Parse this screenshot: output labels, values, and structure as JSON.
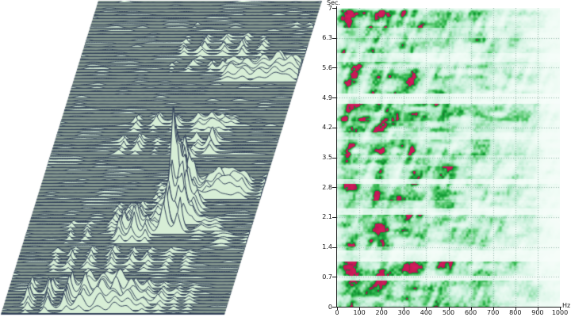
{
  "figure": {
    "background": "#ffffff",
    "description": "Two-panel acoustic analysis figure: sheared waterfall (ridgeline) spectra stack on the left, time-frequency spectrogram heatmap on the right"
  },
  "chart_data": [
    {
      "type": "area",
      "subtype": "waterfall-ridgeline",
      "title": "",
      "xlabel": "",
      "ylabel": "",
      "x_range_hz": [
        0,
        1000
      ],
      "t_range_sec": [
        0,
        7
      ],
      "rows": 99,
      "grid": "off",
      "palette": {
        "background": "#84978e",
        "trace_line": "#33425a",
        "peak_outline": "#22304f",
        "fill": "#d7eed6",
        "page": "#ffffff"
      },
      "bands": [
        {
          "rows": [
            7,
            8
          ],
          "peaks": [
            [
              133,
              3.5,
              3
            ],
            [
              258,
              4,
              5
            ],
            [
              278,
              3,
              4
            ],
            [
              300,
              3,
              4
            ]
          ]
        },
        {
          "rows": [
            11,
            18
          ],
          "peaks": [
            [
              128,
              7,
              3.5
            ],
            [
              152,
              9,
              4
            ],
            [
              178,
              8,
              4
            ],
            [
              202,
              10,
              4
            ],
            [
              225,
              7,
              4
            ]
          ]
        },
        {
          "rows": [
            13,
            15
          ],
          "peaks": [
            [
              305,
              3,
              5
            ],
            [
              325,
              3,
              5
            ]
          ]
        },
        {
          "rows": [
            19,
            25
          ],
          "peaks": [
            [
              196,
              11,
              7
            ],
            [
              214,
              13,
              8
            ],
            [
              233,
              15,
              8
            ],
            [
              255,
              22,
              9
            ],
            [
              272,
              16,
              8
            ],
            [
              291,
              11,
              7
            ],
            [
              307,
              8,
              6
            ]
          ]
        },
        {
          "rows": [
            19,
            22
          ],
          "peaks": [
            [
              121,
              5,
              3
            ],
            [
              143,
              6,
              3.5
            ],
            [
              169,
              7,
              3.5
            ],
            [
              186,
              7,
              3.5
            ]
          ]
        },
        {
          "rows": [
            36,
            41
          ],
          "peaks": [
            [
              97,
              8,
              3.5
            ],
            [
              122,
              10,
              4
            ],
            [
              147,
              9,
              4
            ],
            [
              175,
              10,
              6
            ],
            [
              191,
              12,
              7
            ],
            [
              206,
              8,
              6
            ],
            [
              218,
              4,
              4
            ]
          ]
        },
        {
          "rows": [
            43,
            48
          ],
          "peaks": [
            [
              88,
              10,
              3.5
            ],
            [
              108,
              12,
              4
            ],
            [
              131,
              4,
              3
            ],
            [
              149,
              4,
              3
            ],
            [
              164,
              4,
              3
            ],
            [
              181,
              11,
              4
            ],
            [
              200,
              20,
              5
            ]
          ]
        },
        {
          "rows": [
            49,
            55
          ],
          "peaks": [
            [
              175,
              35,
              4.5
            ]
          ]
        },
        {
          "rows": [
            56,
            61
          ],
          "peaks": [
            [
              175,
              70,
              5
            ],
            [
              185,
              30,
              4
            ],
            [
              193,
              22,
              4
            ]
          ]
        },
        {
          "rows": [
            62,
            70
          ],
          "peaks": [
            [
              175,
              95,
              5.5
            ],
            [
              185,
              42,
              4.5
            ],
            [
              193,
              55,
              5
            ],
            [
              205,
              18,
              6
            ]
          ]
        },
        {
          "rows": [
            71,
            73
          ],
          "peaks": [
            [
              175,
              55,
              5
            ],
            [
              193,
              40,
              4.5
            ]
          ]
        },
        {
          "rows": [
            56,
            62
          ],
          "peaks": [
            [
              212,
              14,
              7
            ],
            [
              227,
              20,
              8
            ],
            [
              241,
              18,
              8
            ],
            [
              256,
              14,
              7
            ]
          ]
        },
        {
          "rows": [
            55,
            62
          ],
          "peaks": [
            [
              288,
              12,
              8
            ],
            [
              307,
              16,
              9
            ],
            [
              326,
              14,
              8
            ],
            [
              346,
              10,
              7
            ],
            [
              365,
              6,
              6
            ],
            [
              385,
              4,
              5
            ],
            [
              405,
              3,
              5
            ],
            [
              425,
              3,
              4
            ],
            [
              445,
              3,
              4
            ]
          ]
        },
        {
          "rows": [
            57,
            64
          ],
          "peaks": [
            [
              152,
              6,
              3
            ],
            [
              161,
              5,
              3
            ]
          ]
        },
        {
          "rows": [
            64,
            73
          ],
          "peaks": [
            [
              108,
              8,
              3.5
            ],
            [
              124,
              10,
              4
            ],
            [
              139,
              12,
              4
            ],
            [
              158,
              9,
              4
            ]
          ]
        },
        {
          "rows": [
            70,
            76
          ],
          "peaks": [
            [
              121,
              22,
              4
            ],
            [
              136,
              26,
              4.5
            ],
            [
              152,
              18,
              4
            ]
          ]
        },
        {
          "rows": [
            70,
            76
          ],
          "peaks": [
            [
              57,
              7,
              3
            ],
            [
              77,
              8,
              3.5
            ]
          ]
        },
        {
          "rows": [
            68,
            73
          ],
          "peaks": [
            [
              220,
              6,
              6
            ],
            [
              237,
              5,
              6
            ]
          ]
        },
        {
          "rows": [
            73,
            77
          ],
          "peaks": [
            [
              252,
              5,
              12
            ],
            [
              285,
              4,
              10
            ]
          ]
        },
        {
          "rows": [
            78,
            85
          ],
          "peaks": [
            [
              48,
              7,
              3.5
            ],
            [
              68,
              9,
              3.5
            ],
            [
              92,
              11,
              4
            ],
            [
              118,
              12,
              4
            ],
            [
              143,
              10,
              4
            ],
            [
              165,
              8,
              4
            ],
            [
              190,
              6,
              4
            ],
            [
              212,
              4,
              4
            ]
          ]
        },
        {
          "rows": [
            89,
            98
          ],
          "peaks": [
            [
              30,
              20,
              3.5
            ],
            [
              55,
              23,
              4
            ],
            [
              80,
              25,
              4
            ],
            [
              100,
              24,
              7
            ],
            [
              121,
              31,
              8
            ],
            [
              141,
              28,
              8
            ],
            [
              159,
              18,
              7
            ],
            [
              177,
              13,
              6
            ],
            [
              196,
              9,
              5
            ],
            [
              215,
              6,
              5
            ],
            [
              233,
              4,
              5
            ]
          ]
        }
      ]
    },
    {
      "type": "heatmap",
      "title": "",
      "xlabel": "Hz",
      "ylabel": "Sec.",
      "x_range": [
        0,
        1000
      ],
      "y_range": [
        0,
        7
      ],
      "x_ticks": [
        "0",
        "100",
        "200",
        "300",
        "400",
        "500",
        "600",
        "700",
        "800",
        "900",
        "1000"
      ],
      "y_ticks": [
        "7",
        "6.3",
        "5.6",
        "4.9",
        "4.2",
        "3.5",
        "2.8",
        "2.1",
        "1.4",
        "0.7",
        "0"
      ],
      "grid": "dotted",
      "legend": "none",
      "palette": {
        "background": "#f7fdfa",
        "low": "#d6f4e4",
        "mid": "#3fbd5a",
        "high": "#0e8a2e",
        "hot": "#c31754",
        "gridline": "#8fb5a5",
        "axis": "#1c1c1c"
      },
      "time_bands": [
        [
          0.0,
          0.63,
          0.95
        ],
        [
          0.63,
          0.74,
          0.25
        ],
        [
          0.74,
          1.06,
          0.9
        ],
        [
          1.06,
          1.32,
          0.18
        ],
        [
          1.32,
          1.42,
          0.5
        ],
        [
          1.42,
          1.75,
          0.85
        ],
        [
          1.75,
          2.17,
          1.0
        ],
        [
          2.17,
          2.32,
          0.25
        ],
        [
          2.32,
          2.5,
          0.6
        ],
        [
          2.5,
          2.88,
          0.95
        ],
        [
          2.88,
          3.0,
          0.3
        ],
        [
          3.0,
          3.3,
          0.9
        ],
        [
          3.3,
          3.55,
          0.65
        ],
        [
          3.55,
          3.92,
          1.0
        ],
        [
          3.92,
          4.1,
          0.5
        ],
        [
          4.1,
          4.35,
          0.8
        ],
        [
          4.35,
          4.77,
          1.0
        ],
        [
          4.77,
          5.0,
          0.22
        ],
        [
          5.0,
          5.35,
          0.85
        ],
        [
          5.35,
          5.75,
          1.0
        ],
        [
          5.75,
          5.95,
          0.45
        ],
        [
          5.95,
          6.3,
          0.95
        ],
        [
          6.3,
          6.55,
          0.6
        ],
        [
          6.55,
          6.95,
          1.0
        ],
        [
          6.95,
          7.0,
          0.7
        ]
      ],
      "formants_hz": [
        [
          55,
          48,
          1.05
        ],
        [
          185,
          65,
          1.0
        ],
        [
          330,
          70,
          0.9
        ],
        [
          480,
          75,
          0.72
        ],
        [
          640,
          85,
          0.5
        ],
        [
          820,
          110,
          0.34
        ]
      ]
    }
  ]
}
